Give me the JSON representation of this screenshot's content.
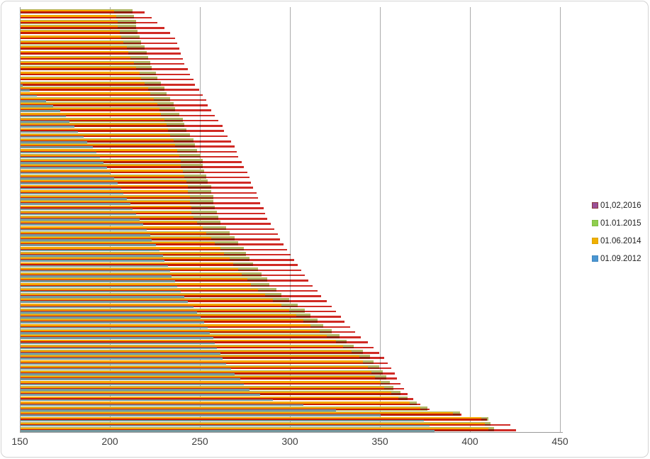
{
  "chart_data": {
    "type": "bar",
    "orientation": "horizontal",
    "title": "",
    "xlabel": "",
    "ylabel": "",
    "grid": true,
    "legend_position": "right",
    "categories_labeled": false,
    "n_categories": 82,
    "x_axis": {
      "min": 150,
      "max": 450,
      "tick_step": 50,
      "tick_labels": [
        "150",
        "200",
        "250",
        "300",
        "350",
        "400",
        "450"
      ]
    },
    "legend": [
      {
        "label": "01,02,2016",
        "swatch_color": "#9a5098",
        "swatch_border": "#8e3a3f"
      },
      {
        "label": "01.01.2015",
        "swatch_color": "#8fce4e",
        "swatch_border": "#82bd45"
      },
      {
        "label": "01.06.2014",
        "swatch_color": "#f0b000",
        "swatch_border": "#dda300"
      },
      {
        "label": "01.09.2012",
        "swatch_color": "#4a96d2",
        "swatch_border": "#4288c1"
      }
    ],
    "series": [
      {
        "name": "01.01.2015",
        "bar_color": "#afb765",
        "values": [
          212,
          213,
          214,
          214,
          215,
          216,
          217,
          219,
          220,
          221,
          222,
          223,
          225,
          226,
          228,
          230,
          231,
          233,
          235,
          236,
          238,
          240,
          241,
          242,
          244,
          246,
          247,
          248,
          250,
          251,
          251,
          252,
          253,
          254,
          256,
          256,
          257,
          257,
          258,
          259,
          260,
          261,
          264,
          266,
          269,
          271,
          274,
          275,
          277,
          279,
          282,
          284,
          287,
          288,
          292,
          295,
          299,
          304,
          308,
          311,
          315,
          318,
          323,
          327,
          331,
          335,
          340,
          344,
          346,
          349,
          351,
          353,
          355,
          357,
          361,
          365,
          370,
          376,
          394,
          410,
          411,
          413
        ]
      },
      {
        "name": "01.06.2014",
        "bar_color": "#f5a700",
        "values": [
          202,
          203,
          204,
          204,
          205,
          206,
          207,
          209,
          210,
          211,
          213,
          214,
          216,
          217,
          219,
          221,
          222,
          224,
          226,
          227,
          228,
          230,
          231,
          232,
          233,
          235,
          236,
          237,
          238,
          239,
          239,
          240,
          241,
          242,
          243,
          243,
          244,
          244,
          245,
          245,
          246,
          248,
          251,
          253,
          256,
          258,
          261,
          263,
          266,
          268,
          271,
          273,
          276,
          278,
          282,
          286,
          290,
          295,
          299,
          303,
          307,
          311,
          316,
          320,
          325,
          329,
          334,
          338,
          340,
          343,
          345,
          347,
          350,
          352,
          356,
          360,
          366,
          372,
          390,
          406,
          408,
          410
        ]
      },
      {
        "name": "01,02,2016",
        "bar_color": "#d02a25",
        "values": [
          219,
          223,
          226,
          230,
          233,
          236,
          237,
          238,
          239,
          240,
          241,
          243,
          244,
          246,
          247,
          249,
          251,
          253,
          254,
          256,
          258,
          260,
          262,
          263,
          265,
          267,
          269,
          270,
          271,
          273,
          274,
          276,
          277,
          278,
          279,
          281,
          282,
          283,
          285,
          286,
          287,
          289,
          291,
          293,
          294,
          296,
          298,
          300,
          302,
          304,
          306,
          308,
          310,
          312,
          315,
          317,
          320,
          323,
          325,
          328,
          330,
          333,
          336,
          339,
          343,
          346,
          349,
          352,
          354,
          356,
          358,
          359,
          361,
          363,
          365,
          368,
          372,
          377,
          395,
          409,
          422,
          425
        ]
      },
      {
        "name": "01.09.2012",
        "bar_color": "#74989e",
        "values": [
          138,
          139,
          140,
          141,
          142,
          143,
          143,
          144,
          145,
          146,
          147,
          148,
          149,
          150,
          151,
          155,
          159,
          164,
          168,
          172,
          175,
          177,
          180,
          182,
          185,
          187,
          190,
          192,
          194,
          196,
          198,
          200,
          202,
          204,
          206,
          207,
          209,
          211,
          212,
          214,
          216,
          218,
          220,
          222,
          223,
          225,
          227,
          229,
          230,
          232,
          233,
          234,
          236,
          237,
          239,
          241,
          243,
          246,
          248,
          250,
          252,
          254,
          255,
          257,
          258,
          259,
          261,
          262,
          264,
          267,
          269,
          272,
          274,
          277,
          283,
          290,
          307,
          325,
          350,
          374,
          377,
          380
        ]
      }
    ]
  }
}
